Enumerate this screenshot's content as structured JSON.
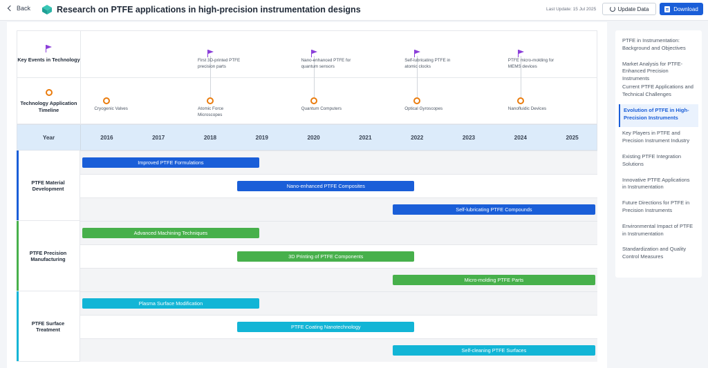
{
  "header": {
    "back_label": "Back",
    "title": "Research on PTFE applications in high-precision instrumentation designs",
    "last_update": "Last Update: 15 Jul 2025",
    "update_label": "Update Data",
    "download_label": "Download"
  },
  "timeline": {
    "events_label": "Key Events in Technology",
    "apps_label": "Technology Application Timeline",
    "year_label": "Year",
    "years": [
      "2016",
      "2017",
      "2018",
      "2019",
      "2020",
      "2021",
      "2022",
      "2023",
      "2024",
      "2025"
    ],
    "key_events": [
      {
        "year": 2018,
        "text": "First 3D-printed PTFE precision parts"
      },
      {
        "year": 2020,
        "text": "Nano-enhanced PTFE for quantum sensors"
      },
      {
        "year": 2022,
        "text": "Self-lubricating PTFE in atomic clocks"
      },
      {
        "year": 2024,
        "text": "PTFE micro-molding for MEMS devices"
      }
    ],
    "applications": [
      {
        "year": 2016,
        "text": "Cryogenic Valves"
      },
      {
        "year": 2018,
        "text": "Atomic Force Microscopes"
      },
      {
        "year": 2020,
        "text": "Quantum Computers"
      },
      {
        "year": 2022,
        "text": "Optical Gyroscopes"
      },
      {
        "year": 2024,
        "text": "Nanofluidic Devices"
      }
    ],
    "groups": [
      {
        "label": "PTFE Material Development",
        "color": "#1a5ed8",
        "bars": [
          {
            "label": "Improved PTFE Formulations",
            "start": 2016,
            "end": 2019.5
          },
          {
            "label": "Nano-enhanced PTFE Composites",
            "start": 2019,
            "end": 2022.5
          },
          {
            "label": "Self-lubricating PTFE Compounds",
            "start": 2022,
            "end": 2026
          }
        ]
      },
      {
        "label": "PTFE Precision Manufacturing",
        "color": "#47b04b",
        "bars": [
          {
            "label": "Advanced Machining Techniques",
            "start": 2016,
            "end": 2019.5
          },
          {
            "label": "3D Printing of PTFE Components",
            "start": 2019,
            "end": 2022.5
          },
          {
            "label": "Micro-molding PTFE Parts",
            "start": 2022,
            "end": 2026
          }
        ]
      },
      {
        "label": "PTFE Surface Treatment",
        "color": "#12b5d6",
        "bars": [
          {
            "label": "Plasma Surface Modification",
            "start": 2016,
            "end": 2019.5
          },
          {
            "label": "PTFE Coating Nanotechnology",
            "start": 2019,
            "end": 2022.5
          },
          {
            "label": "Self-cleaning PTFE Surfaces",
            "start": 2022,
            "end": 2026
          }
        ]
      }
    ]
  },
  "sidebar": {
    "active_index": 3,
    "items": [
      "PTFE in Instrumentation: Background and Objectives",
      "Market Analysis for PTFE-Enhanced Precision Instruments",
      "Current PTFE Applications and Technical Challenges",
      "Evolution of PTFE in High-Precision Instruments",
      "Key Players in PTFE and Precision Instrument Industry",
      "Existing PTFE Integration Solutions",
      "Innovative PTFE Applications in Instrumentation",
      "Future Directions for PTFE in Precision Instruments",
      "Environmental Impact of PTFE in Instrumentation",
      "Standardization and Quality Control Measures"
    ]
  }
}
